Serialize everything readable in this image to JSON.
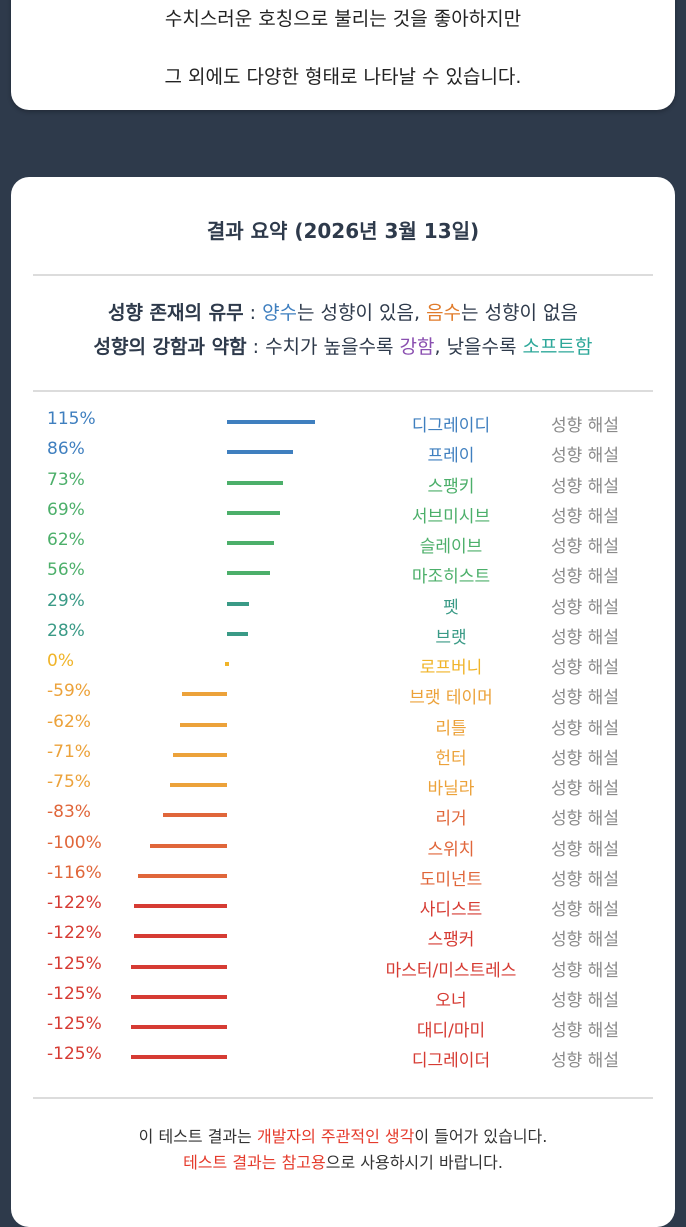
{
  "top_card": {
    "line1": "수치스러운 호칭으로 불리는 것을 좋아하지만",
    "line2": "그 외에도 다양한 형태로 나타날 수 있습니다."
  },
  "summary": {
    "title": "결과 요약 (2026년 3월 13일)",
    "legend1": {
      "label": "성향 존재의 유무",
      "sep": " : ",
      "pos_word": "양수",
      "pos_text": "는 성향이 있음, ",
      "neg_word": "음수",
      "neg_text": "는 성향이 없음"
    },
    "legend2": {
      "label": "성향의 강함과 약함",
      "sep": " : ",
      "pre": "수치가 높을수록 ",
      "strong_word": "강함",
      "mid": ", 낮을수록 ",
      "soft_word": "소프트함"
    },
    "explain_label": "성향 해설"
  },
  "chart_data": {
    "type": "bar",
    "categories": [
      "디그레이디",
      "프레이",
      "스팽키",
      "서브미시브",
      "슬레이브",
      "마조히스트",
      "펫",
      "브랫",
      "로프버니",
      "브랫 테이머",
      "리틀",
      "헌터",
      "바닐라",
      "리거",
      "스위치",
      "도미넌트",
      "사디스트",
      "스팽커",
      "마스터/미스트레스",
      "오너",
      "대디/마미",
      "디그레이더"
    ],
    "values": [
      115,
      86,
      73,
      69,
      62,
      56,
      29,
      28,
      0,
      -59,
      -62,
      -71,
      -75,
      -83,
      -100,
      -116,
      -122,
      -122,
      -125,
      -125,
      -125,
      -125
    ],
    "labels": [
      "115%",
      "86%",
      "73%",
      "69%",
      "62%",
      "56%",
      "29%",
      "28%",
      "0%",
      "-59%",
      "-62%",
      "-71%",
      "-75%",
      "-83%",
      "-100%",
      "-116%",
      "-122%",
      "-122%",
      "-125%",
      "-125%",
      "-125%",
      "-125%"
    ],
    "colors": [
      "#3f7fbf",
      "#3f7fbf",
      "#4caf6a",
      "#4caf6a",
      "#4caf6a",
      "#4caf6a",
      "#3a9a86",
      "#3a9a86",
      "#f0b429",
      "#eca23a",
      "#eca23a",
      "#eca23a",
      "#eca23a",
      "#e0663a",
      "#e0663a",
      "#e0663a",
      "#d63b33",
      "#d63b33",
      "#d63b33",
      "#d63b33",
      "#d63b33",
      "#d63b33"
    ],
    "unit": "%"
  },
  "footer": {
    "l1_pre": "이 테스트 결과는 ",
    "l1_red": "개발자의 주관적인 생각",
    "l1_post": "이 들어가 있습니다.",
    "l2_red": "테스트 결과는 참고용",
    "l2_post": "으로 사용하시기 바랍니다."
  }
}
